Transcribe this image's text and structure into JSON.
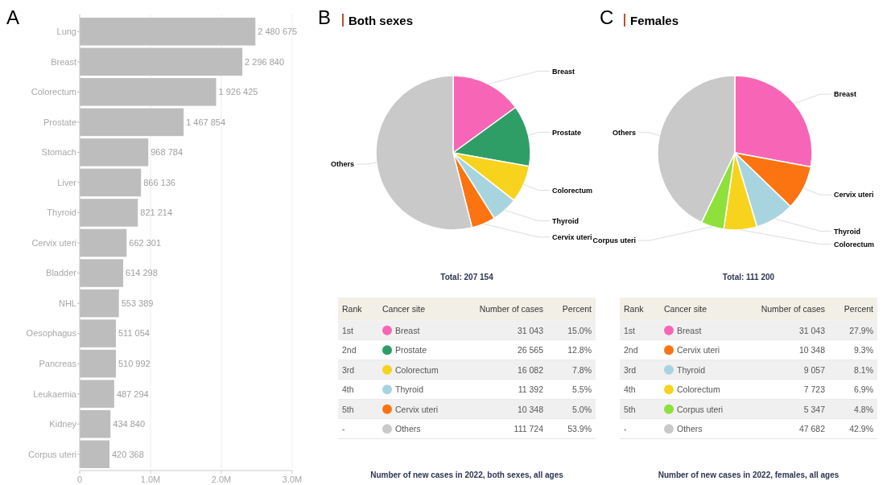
{
  "chart_data": [
    {
      "type": "bar",
      "orientation": "horizontal",
      "annotations": [
        "A"
      ],
      "categories": [
        "Lung",
        "Breast",
        "Colorectum",
        "Prostate",
        "Stomach",
        "Liver",
        "Thyroid",
        "Cervix uteri",
        "Bladder",
        "NHL",
        "Oesophagus",
        "Pancreas",
        "Leukaemia",
        "Kidney",
        "Corpus uteri"
      ],
      "values": [
        2480675,
        2296840,
        1926425,
        1467854,
        968784,
        866136,
        821214,
        662301,
        614298,
        553389,
        511054,
        510992,
        487294,
        434840,
        420368
      ],
      "value_labels": [
        "2 480 675",
        "2 296 840",
        "1 926 425",
        "1 467 854",
        "968 784",
        "866 136",
        "821 214",
        "662 301",
        "614 298",
        "553 389",
        "511 054",
        "510 992",
        "487 294",
        "434 840",
        "420 368"
      ],
      "color": "#bdbdbd",
      "xlim": [
        0,
        3000000
      ],
      "xticks": [
        0,
        {
          "value": 1000000,
          "label": "1.0M"
        },
        {
          "value": 2000000,
          "label": "2.0M"
        },
        {
          "value": 3000000,
          "label": "3.0M"
        }
      ],
      "grid": "x"
    },
    {
      "type": "pie",
      "title": "Both sexes",
      "annotations": [
        "B",
        "Total: 207 154",
        "Number of new cases in 2022, both sexes, all ages",
        "Rank",
        "Cancer site",
        "Number of cases",
        "Percent",
        "1st",
        "2nd",
        "3rd",
        "4th",
        "5th",
        "-",
        "15.0%",
        "12.8%",
        "7.8%",
        "5.5%",
        "5.0%",
        "53.9%"
      ],
      "categories": [
        "Breast",
        "Prostate",
        "Colorectum",
        "Thyroid",
        "Cervix uteri",
        "Others"
      ],
      "values": [
        31043,
        26565,
        16082,
        11392,
        10348,
        111724
      ],
      "value_labels": [
        "31 043",
        "26 565",
        "16 082",
        "11 392",
        "10 348",
        "111 724"
      ],
      "colors": [
        "#f766b6",
        "#2f9e66",
        "#f7d31e",
        "#a8d4e0",
        "#fc7412",
        "#c9c9c9"
      ],
      "legend": "bottom"
    },
    {
      "type": "pie",
      "title": "Females",
      "annotations": [
        "C",
        "Total: 111 200",
        "Number of new cases in 2022, females, all ages",
        "Rank",
        "Cancer site",
        "Number of cases",
        "Percent",
        "1st",
        "2nd",
        "3rd",
        "4th",
        "5th",
        "-",
        "27.9%",
        "9.3%",
        "8.1%",
        "6.9%",
        "4.8%",
        "42.9%"
      ],
      "categories": [
        "Breast",
        "Cervix uteri",
        "Thyroid",
        "Colorectum",
        "Corpus uteri",
        "Others"
      ],
      "values": [
        31043,
        10348,
        9057,
        7723,
        5347,
        47682
      ],
      "value_labels": [
        "31 043",
        "10 348",
        "9 057",
        "7 723",
        "5 347",
        "47 682"
      ],
      "colors": [
        "#f766b6",
        "#fc7412",
        "#a8d4e0",
        "#f7d31e",
        "#8ee03a",
        "#c9c9c9"
      ],
      "legend": "bottom"
    }
  ]
}
